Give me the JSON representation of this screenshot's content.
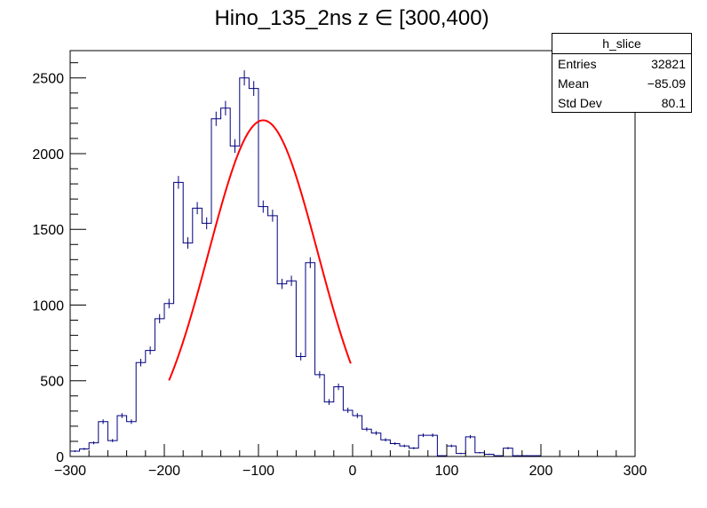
{
  "chart_data": {
    "type": "histogram",
    "title": "Hino_135_2ns z  ∈ [300,400)",
    "xlabel": "",
    "ylabel": "",
    "xlim": [
      -300,
      300
    ],
    "ylim": [
      0,
      2680
    ],
    "x_ticks": [
      "−300",
      "−200",
      "−100",
      "0",
      "100",
      "200",
      "300"
    ],
    "y_ticks": [
      "0",
      "500",
      "1000",
      "1500",
      "2000",
      "2500"
    ],
    "bin_width": 10,
    "bin_edges_start": -300,
    "values": [
      35,
      50,
      90,
      230,
      105,
      270,
      230,
      620,
      700,
      910,
      1010,
      1810,
      1410,
      1640,
      1540,
      2230,
      2300,
      2050,
      2500,
      2430,
      1650,
      1590,
      1140,
      1160,
      660,
      1280,
      540,
      360,
      460,
      305,
      270,
      180,
      155,
      110,
      85,
      70,
      55,
      140,
      140,
      5,
      70,
      20,
      130,
      25,
      15,
      5,
      55,
      5,
      5,
      5
    ],
    "fit": {
      "type": "gaussian",
      "color": "#ff0000",
      "amplitude": 2220,
      "mean": -95,
      "sigma": 58,
      "x_range": [
        -195,
        -2
      ]
    },
    "histogram_color": "#00007f",
    "grid": false
  },
  "stats_box": {
    "title": "h_slice",
    "rows": [
      {
        "label": "Entries",
        "value": "32821"
      },
      {
        "label": "Mean",
        "value": "−85.09"
      },
      {
        "label": "Std Dev",
        "value": "80.1"
      }
    ]
  }
}
